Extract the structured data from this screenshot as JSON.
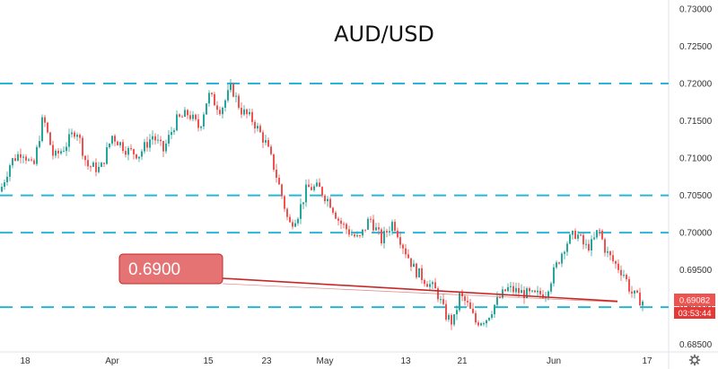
{
  "chart_data": {
    "type": "candlestick",
    "title": "AUD/USD",
    "y_axis": {
      "ticks": [
        "0.73000",
        "0.72500",
        "0.72000",
        "0.71500",
        "0.71000",
        "0.70500",
        "0.70000",
        "0.69500",
        "0.69000",
        "0.68500"
      ],
      "tick_values": [
        0.73,
        0.725,
        0.72,
        0.715,
        0.71,
        0.705,
        0.7,
        0.695,
        0.69,
        0.685
      ],
      "range": [
        0.684,
        0.7312
      ],
      "position": "right"
    },
    "x_axis": {
      "ticks": [
        "18",
        "Apr",
        "15",
        "23",
        "May",
        "13",
        "21",
        "Jun",
        "17"
      ]
    },
    "horizontal_levels": [
      0.72,
      0.705,
      0.7,
      0.69
    ],
    "annotation": {
      "text": "0.6900",
      "trendline_value": 0.6908
    },
    "last_price": {
      "value": "0.69082",
      "countdown": "03:53:44"
    },
    "series_keypoints": [
      [
        0,
        0.7055
      ],
      [
        12,
        0.7095
      ],
      [
        25,
        0.711
      ],
      [
        37,
        0.7085
      ],
      [
        48,
        0.7155
      ],
      [
        60,
        0.71
      ],
      [
        72,
        0.7115
      ],
      [
        85,
        0.714
      ],
      [
        97,
        0.709
      ],
      [
        112,
        0.7085
      ],
      [
        125,
        0.713
      ],
      [
        142,
        0.711
      ],
      [
        155,
        0.7105
      ],
      [
        170,
        0.713
      ],
      [
        182,
        0.711
      ],
      [
        196,
        0.715
      ],
      [
        210,
        0.716
      ],
      [
        222,
        0.714
      ],
      [
        232,
        0.7185
      ],
      [
        246,
        0.7165
      ],
      [
        258,
        0.7195
      ],
      [
        268,
        0.7165
      ],
      [
        282,
        0.715
      ],
      [
        296,
        0.712
      ],
      [
        306,
        0.7085
      ],
      [
        315,
        0.7045
      ],
      [
        322,
        0.701
      ],
      [
        332,
        0.7025
      ],
      [
        342,
        0.706
      ],
      [
        355,
        0.706
      ],
      [
        368,
        0.704
      ],
      [
        378,
        0.7015
      ],
      [
        390,
        0.7
      ],
      [
        400,
        0.699
      ],
      [
        412,
        0.702
      ],
      [
        425,
        0.699
      ],
      [
        438,
        0.7015
      ],
      [
        450,
        0.698
      ],
      [
        462,
        0.695
      ],
      [
        475,
        0.6935
      ],
      [
        487,
        0.692
      ],
      [
        496,
        0.689
      ],
      [
        505,
        0.6878
      ],
      [
        512,
        0.6915
      ],
      [
        520,
        0.6905
      ],
      [
        530,
        0.688
      ],
      [
        542,
        0.6885
      ],
      [
        552,
        0.6905
      ],
      [
        565,
        0.6925
      ],
      [
        580,
        0.692
      ],
      [
        595,
        0.6915
      ],
      [
        608,
        0.692
      ],
      [
        618,
        0.695
      ],
      [
        630,
        0.6985
      ],
      [
        642,
        0.7
      ],
      [
        652,
        0.698
      ],
      [
        660,
        0.6985
      ],
      [
        667,
        0.7005
      ],
      [
        675,
        0.6975
      ],
      [
        684,
        0.696
      ],
      [
        695,
        0.6945
      ],
      [
        703,
        0.692
      ],
      [
        710,
        0.6912
      ],
      [
        716,
        0.6908
      ]
    ]
  },
  "colors": {
    "up": "#26a69a",
    "down": "#ef5350",
    "level_line": "#29b6d6",
    "trendline": "#c62828",
    "callout_fill": "#e57373",
    "badge_price": "#ef5350",
    "badge_time": "#e53935",
    "axis_text": "#333333"
  },
  "icons": {
    "settings": "gear-icon"
  }
}
